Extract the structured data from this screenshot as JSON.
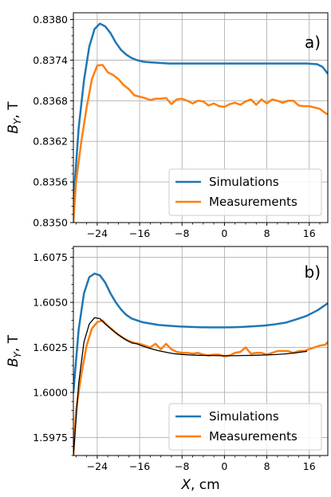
{
  "chart_data": [
    {
      "type": "line",
      "panel_label": "a)",
      "xlabel": "",
      "ylabel": "B_Y, T",
      "xlim": [
        -28.5,
        19.5
      ],
      "ylim": [
        0.835,
        0.8381
      ],
      "xticks": [
        -24,
        -16,
        -8,
        0,
        8,
        16
      ],
      "yticks": [
        0.835,
        0.8356,
        0.8362,
        0.8368,
        0.8374,
        0.838
      ],
      "ytick_labels": [
        "0.8350",
        "0.8356",
        "0.8362",
        "0.8368",
        "0.8374",
        "0.8380"
      ],
      "grid": true,
      "legend": "lower-right",
      "series": [
        {
          "name": "Simulations",
          "color": "#1f77b4",
          "x": [
            -28.5,
            -27.5,
            -26.5,
            -25.5,
            -24.5,
            -23.5,
            -22.5,
            -21.5,
            -20.5,
            -19.5,
            -18.5,
            -17.5,
            -16.5,
            -15.5,
            -14.5,
            -12.5,
            -10.5,
            -8.5,
            -6.5,
            -4.5,
            -2.5,
            -0.5,
            1.5,
            3.5,
            5.5,
            7.5,
            9.5,
            11.5,
            13.5,
            15.5,
            17.5,
            18.5,
            19.5
          ],
          "y": [
            0.8353,
            0.8364,
            0.8371,
            0.8376,
            0.83786,
            0.83794,
            0.8379,
            0.8378,
            0.83766,
            0.83755,
            0.83748,
            0.83743,
            0.8374,
            0.83738,
            0.83737,
            0.83736,
            0.83735,
            0.83735,
            0.83735,
            0.83735,
            0.83735,
            0.83735,
            0.83735,
            0.83735,
            0.83735,
            0.83735,
            0.83735,
            0.83735,
            0.83735,
            0.83735,
            0.83734,
            0.8373,
            0.8372
          ]
        },
        {
          "name": "Measurements",
          "color": "#ff7f0e",
          "x": [
            -28.5,
            -28,
            -27,
            -26,
            -25,
            -24,
            -23,
            -22,
            -21,
            -20,
            -19,
            -18,
            -17,
            -16,
            -15,
            -14,
            -13,
            -12,
            -11,
            -10,
            -9,
            -8,
            -7,
            -6,
            -5,
            -4,
            -3,
            -2,
            -1,
            0,
            1,
            2,
            3,
            4,
            5,
            6,
            7,
            8,
            9,
            10,
            11,
            12,
            13,
            14,
            15,
            16,
            17,
            18,
            19,
            19.5
          ],
          "y": [
            0.835,
            0.8356,
            0.8362,
            0.8367,
            0.83712,
            0.83732,
            0.83733,
            0.83722,
            0.83718,
            0.83712,
            0.83703,
            0.83697,
            0.83688,
            0.83686,
            0.83684,
            0.83681,
            0.83683,
            0.83683,
            0.83684,
            0.83675,
            0.83682,
            0.83683,
            0.8368,
            0.83676,
            0.8368,
            0.83679,
            0.83673,
            0.83676,
            0.83672,
            0.83671,
            0.83675,
            0.83677,
            0.83674,
            0.83679,
            0.83682,
            0.83674,
            0.83682,
            0.83676,
            0.83682,
            0.8368,
            0.83677,
            0.8368,
            0.8368,
            0.83673,
            0.83672,
            0.83672,
            0.8367,
            0.83668,
            0.83662,
            0.8366
          ]
        }
      ]
    },
    {
      "type": "line",
      "panel_label": "b)",
      "xlabel": "X, cm",
      "ylabel": "B_Y, T",
      "xlim": [
        -28.5,
        19.5
      ],
      "ylim": [
        1.5965,
        1.6081
      ],
      "xticks": [
        -24,
        -16,
        -8,
        0,
        8,
        16
      ],
      "yticks": [
        1.5975,
        1.6,
        1.6025,
        1.605,
        1.6075
      ],
      "ytick_labels": [
        "1.5975",
        "1.6000",
        "1.6025",
        "1.6050",
        "1.6075"
      ],
      "grid": true,
      "legend": "lower-right",
      "series": [
        {
          "name": "Simulations",
          "color": "#1f77b4",
          "x": [
            -28.5,
            -27.5,
            -26.5,
            -25.5,
            -24.5,
            -23.5,
            -22.5,
            -21.5,
            -20.5,
            -19.5,
            -18.5,
            -17.5,
            -16.5,
            -15.5,
            -14.5,
            -13.5,
            -12.5,
            -10.5,
            -8.5,
            -6.5,
            -4.5,
            -2.5,
            -0.5,
            1.5,
            3.5,
            5.5,
            7.5,
            9.5,
            11.5,
            13.5,
            15.5,
            16.5,
            17.5,
            18.5,
            19.5
          ],
          "y": [
            1.6,
            1.6035,
            1.6055,
            1.6064,
            1.6066,
            1.6065,
            1.6061,
            1.6055,
            1.605,
            1.6046,
            1.6043,
            1.6041,
            1.604,
            1.6039,
            1.60385,
            1.6038,
            1.60375,
            1.6037,
            1.60366,
            1.60364,
            1.60362,
            1.60361,
            1.60361,
            1.60362,
            1.60364,
            1.60367,
            1.60371,
            1.60378,
            1.60387,
            1.60405,
            1.60425,
            1.6044,
            1.60455,
            1.60475,
            1.60495
          ]
        },
        {
          "name": "Measurements",
          "color": "#ff7f0e",
          "x": [
            -28.5,
            -28,
            -27,
            -26,
            -25,
            -24,
            -23,
            -22,
            -21,
            -20,
            -19,
            -18,
            -17,
            -16,
            -15,
            -14,
            -13,
            -12,
            -11,
            -10,
            -9,
            -8,
            -7,
            -6,
            -5,
            -4,
            -3,
            -2,
            -1,
            0,
            1,
            2,
            3,
            4,
            5,
            6,
            7,
            8,
            9,
            10,
            11,
            12,
            13,
            14,
            15,
            16,
            17,
            18,
            19,
            19.5
          ],
          "y": [
            1.5965,
            1.599,
            1.601,
            1.6026,
            1.60355,
            1.6039,
            1.604,
            1.6037,
            1.60345,
            1.6032,
            1.603,
            1.60285,
            1.60275,
            1.6027,
            1.6026,
            1.6025,
            1.6027,
            1.6024,
            1.6027,
            1.6024,
            1.60225,
            1.6022,
            1.6022,
            1.60215,
            1.6022,
            1.6021,
            1.60205,
            1.6021,
            1.6021,
            1.602,
            1.60205,
            1.6022,
            1.60225,
            1.6025,
            1.60215,
            1.6022,
            1.6022,
            1.6021,
            1.6022,
            1.6023,
            1.6023,
            1.6023,
            1.6022,
            1.6023,
            1.6023,
            1.6024,
            1.6025,
            1.6026,
            1.60265,
            1.6028
          ]
        },
        {
          "name": "",
          "color": "#000000",
          "x": [
            -28.5,
            -27.5,
            -26.5,
            -25.5,
            -24.5,
            -23.5,
            -22.5,
            -21.5,
            -20.5,
            -19.5,
            -18.5,
            -17.5,
            -16.5,
            -15.5,
            -14.5,
            -13.5,
            -12.5,
            -11.5,
            -10.5,
            -9.5,
            -8.5,
            -6.5,
            -4.5,
            -2.5,
            -0.5,
            1.5,
            3.5,
            5.5,
            7.5,
            9.5,
            11.5,
            13.5,
            15.5
          ],
          "y": [
            1.5965,
            1.6005,
            1.6028,
            1.6038,
            1.60415,
            1.6041,
            1.6038,
            1.60355,
            1.6033,
            1.6031,
            1.6029,
            1.60275,
            1.6027,
            1.60258,
            1.60248,
            1.6024,
            1.60232,
            1.60226,
            1.6022,
            1.60215,
            1.60212,
            1.60208,
            1.60206,
            1.60205,
            1.60204,
            1.60204,
            1.60205,
            1.60206,
            1.60208,
            1.6021,
            1.60214,
            1.6022,
            1.60228
          ]
        }
      ]
    }
  ]
}
